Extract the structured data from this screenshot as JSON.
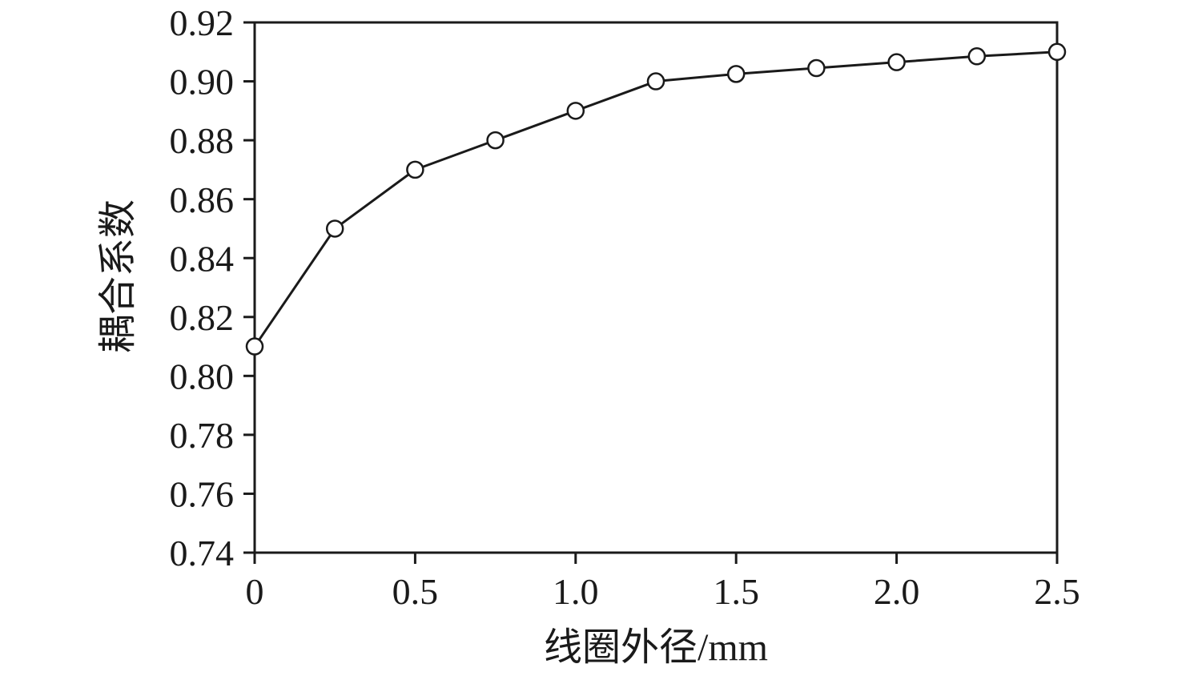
{
  "chart_data": {
    "type": "line",
    "title": "",
    "xlabel": "线圈外径/mm",
    "ylabel": "耦合系数",
    "x": [
      0,
      0.25,
      0.5,
      0.75,
      1.0,
      1.25,
      1.5,
      1.75,
      2.0,
      2.25,
      2.5
    ],
    "y": [
      0.81,
      0.85,
      0.87,
      0.88,
      0.89,
      0.9,
      0.9025,
      0.9045,
      0.9065,
      0.9085,
      0.91
    ],
    "xlim": [
      0,
      2.5
    ],
    "ylim": [
      0.74,
      0.92
    ],
    "x_ticks": [
      0,
      0.5,
      1.0,
      1.5,
      2.0,
      2.5
    ],
    "x_tick_labels": [
      "0",
      "0.5",
      "1.0",
      "1.5",
      "2.0",
      "2.5"
    ],
    "y_ticks": [
      0.74,
      0.76,
      0.78,
      0.8,
      0.82,
      0.84,
      0.86,
      0.88,
      0.9,
      0.92
    ],
    "y_tick_labels": [
      "0.74",
      "0.76",
      "0.78",
      "0.80",
      "0.82",
      "0.84",
      "0.86",
      "0.88",
      "0.90",
      "0.92"
    ],
    "marker": "open-circle",
    "line_color": "#1a1a1a",
    "marker_fill": "#ffffff",
    "grid": false,
    "legend": null
  }
}
